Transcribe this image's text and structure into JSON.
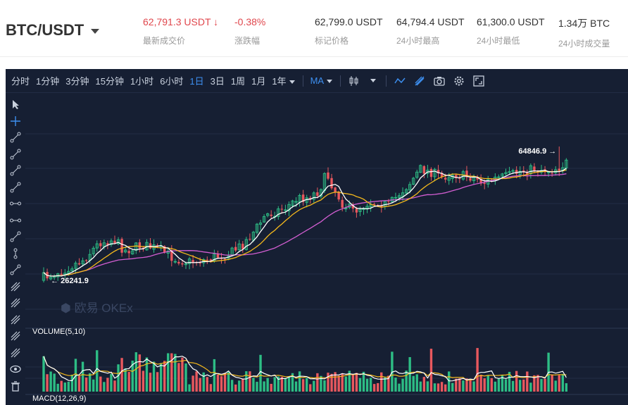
{
  "header": {
    "pair": "BTC/USDT",
    "last_price": "62,791.3 USDT",
    "last_price_arrow": "↓",
    "last_price_label": "最新成交价",
    "change": "-0.38%",
    "change_label": "涨跌幅",
    "mark_price": "62,799.0 USDT",
    "mark_price_label": "标记价格",
    "high": "64,794.4 USDT",
    "high_label": "24小时最高",
    "low": "61,300.0 USDT",
    "low_label": "24小时最低",
    "volume": "1.34万 BTC",
    "volume_label": "24小时成交量"
  },
  "toolbar": {
    "intervals": [
      "分时",
      "1分钟",
      "3分钟",
      "15分钟",
      "1小时",
      "6小时",
      "1日",
      "3日",
      "1周",
      "1月",
      "1年"
    ],
    "active_interval": "1日",
    "indicator": "MA",
    "icons": [
      "candle-type-icon",
      "line-tool-icon",
      "brush-icon",
      "camera-icon",
      "settings-gear-icon",
      "fullscreen-icon"
    ]
  },
  "sidebar": {
    "tools": [
      "cursor-arrow-icon",
      "crosshair-icon",
      "trend-line-icon",
      "ray-line-icon",
      "extended-line-icon",
      "parallel-line-icon",
      "horizontal-line-icon",
      "horizontal-ray-icon",
      "price-range-icon",
      "vertical-line-icon",
      "dot-line-icon",
      "channel-icon",
      "pitchfork-icon",
      "fib-icon",
      "fib-levels-icon",
      "pattern-icon",
      "visibility-eye-icon",
      "trash-icon"
    ]
  },
  "chart_data": {
    "type": "candlestick",
    "main": {
      "max_label": "64846.9",
      "min_label": "26241.9",
      "watermark": "欧易 OKEx",
      "close_start": 28000,
      "close_end": 63600,
      "ma_lines": [
        "MA-fast",
        "MA-medium",
        "MA-slow"
      ],
      "colors": {
        "up": "#2dbd85",
        "down": "#e8585e",
        "ma_fast": "#ffffff",
        "ma_mid": "#f5b91c",
        "ma_slow": "#d35ed2"
      }
    },
    "volume": {
      "label": "VOLUME(5,10)"
    },
    "macd": {
      "label": "MACD(12,26,9)"
    }
  }
}
